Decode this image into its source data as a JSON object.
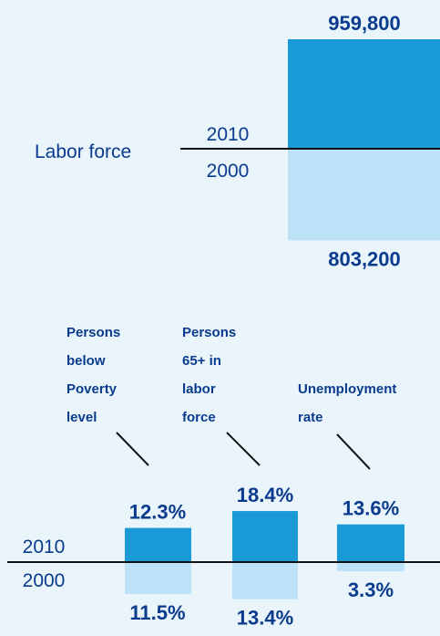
{
  "colors": {
    "background": "#e9f4fb",
    "bar_2010": "#1a9ad7",
    "bar_2000": "#bde1f6",
    "text": "#0a3b8c",
    "axis": "#111111"
  },
  "chart_data": [
    {
      "type": "bar",
      "title": "Labor force",
      "series": [
        {
          "name": "2010",
          "values": [
            959800
          ],
          "labels": [
            "959,800"
          ]
        },
        {
          "name": "2000",
          "values": [
            803200
          ],
          "labels": [
            "803,200"
          ]
        }
      ]
    },
    {
      "type": "bar",
      "categories": [
        [
          "Persons",
          "below",
          "Poverty",
          "level"
        ],
        [
          "Persons",
          "65+ in",
          "labor",
          "force"
        ],
        [
          "Unemployment",
          "rate"
        ]
      ],
      "series": [
        {
          "name": "2010",
          "values": [
            12.3,
            18.4,
            13.6
          ],
          "labels": [
            "12.3%",
            "18.4%",
            "13.6%"
          ]
        },
        {
          "name": "2000",
          "values": [
            11.5,
            13.4,
            3.3
          ],
          "labels": [
            "11.5%",
            "13.4%",
            "3.3%"
          ]
        }
      ]
    }
  ]
}
